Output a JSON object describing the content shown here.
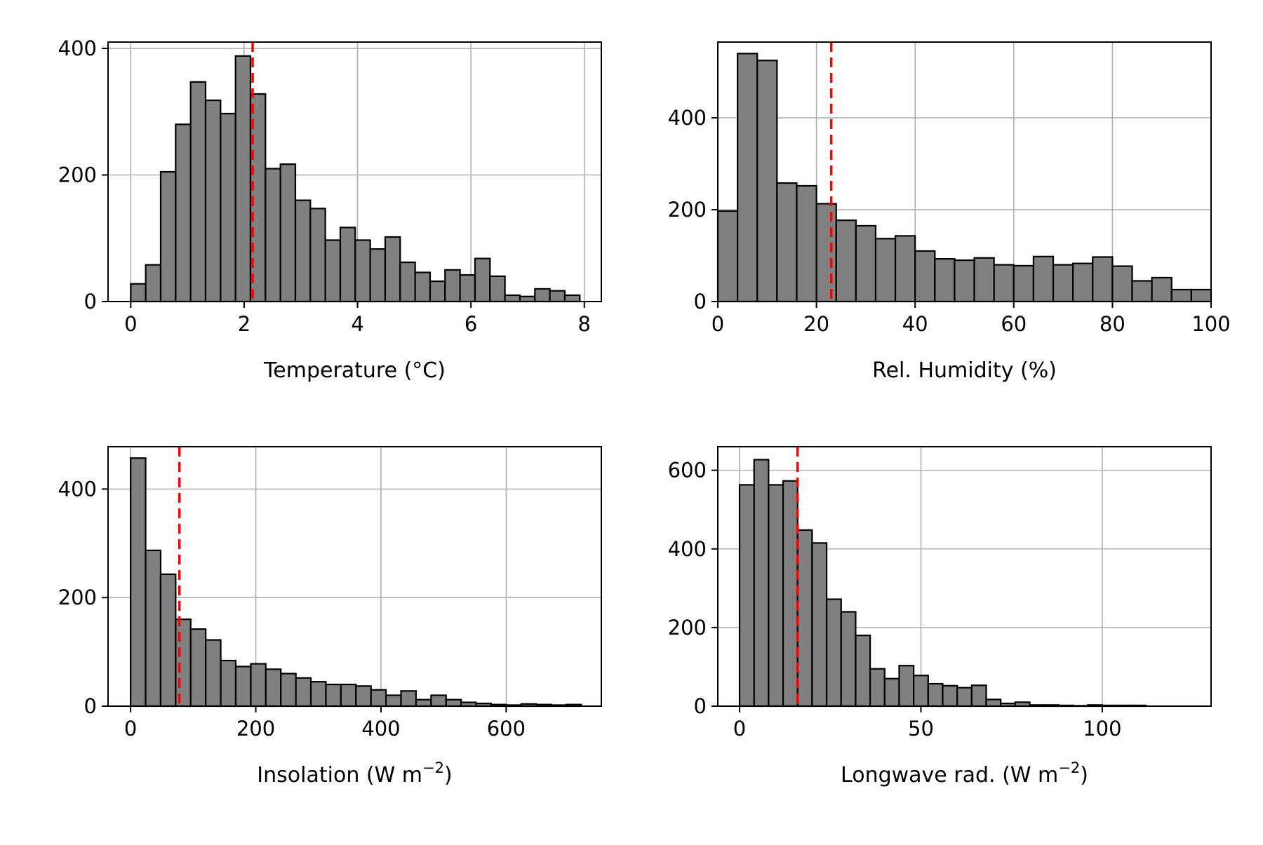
{
  "figure": {
    "bar_color": "#808080",
    "bar_edge_color": "#000000",
    "ref_line_color": "#ff0000",
    "grid": true
  },
  "chart_data": [
    {
      "type": "bar",
      "subtype": "histogram",
      "xlabel": "Temperature (°C)",
      "ylabel": "",
      "xlim": [
        -0.4,
        8.3
      ],
      "ylim": [
        0,
        410
      ],
      "xticks": [
        0,
        2,
        4,
        6,
        8
      ],
      "yticks": [
        0,
        200,
        400
      ],
      "bin_start": 0.0,
      "bin_width": 0.264,
      "counts": [
        28,
        58,
        205,
        280,
        347,
        318,
        297,
        388,
        328,
        210,
        217,
        160,
        147,
        97,
        117,
        97,
        83,
        102,
        62,
        46,
        32,
        50,
        42,
        68,
        40,
        10,
        8,
        20,
        17,
        10
      ],
      "ref_line": 2.15
    },
    {
      "type": "bar",
      "subtype": "histogram",
      "xlabel": "Rel. Humidity (%)",
      "ylabel": "",
      "xlim": [
        0,
        100
      ],
      "ylim": [
        0,
        565
      ],
      "xticks": [
        0,
        20,
        40,
        60,
        80,
        100
      ],
      "yticks": [
        0,
        200,
        400
      ],
      "bin_start": 0,
      "bin_width": 4,
      "counts": [
        197,
        540,
        525,
        258,
        252,
        213,
        177,
        165,
        137,
        143,
        110,
        93,
        90,
        95,
        80,
        78,
        98,
        80,
        83,
        97,
        77,
        45,
        52,
        26,
        26
      ],
      "ref_line": 23
    },
    {
      "type": "bar",
      "subtype": "histogram",
      "xlabel": "Insolation (W m",
      "xlabel_sup": "−2",
      "xlabel_end": ")",
      "ylabel": "",
      "xlim": [
        -36,
        752
      ],
      "ylim": [
        0,
        478
      ],
      "xticks": [
        0,
        200,
        400,
        600
      ],
      "yticks": [
        0,
        200,
        400
      ],
      "bin_start": 0,
      "bin_width": 24,
      "counts": [
        457,
        287,
        243,
        160,
        142,
        122,
        84,
        73,
        78,
        68,
        60,
        52,
        45,
        40,
        40,
        37,
        30,
        20,
        28,
        12,
        20,
        12,
        7,
        5,
        3,
        2,
        4,
        3,
        2,
        3
      ],
      "ref_line": 78
    },
    {
      "type": "bar",
      "subtype": "histogram",
      "xlabel": "Longwave rad. (W m",
      "xlabel_sup": "−2",
      "xlabel_end": ")",
      "ylabel": "",
      "xlim": [
        -6,
        130
      ],
      "ylim": [
        0,
        660
      ],
      "xticks": [
        0,
        50,
        100
      ],
      "yticks": [
        0,
        200,
        400,
        600
      ],
      "bin_start": 0,
      "bin_width": 4,
      "counts": [
        563,
        627,
        563,
        573,
        448,
        415,
        272,
        240,
        180,
        95,
        70,
        103,
        78,
        57,
        52,
        47,
        53,
        17,
        7,
        10,
        3,
        3,
        2,
        1,
        3,
        2,
        2,
        2
      ],
      "ref_line": 16
    }
  ]
}
